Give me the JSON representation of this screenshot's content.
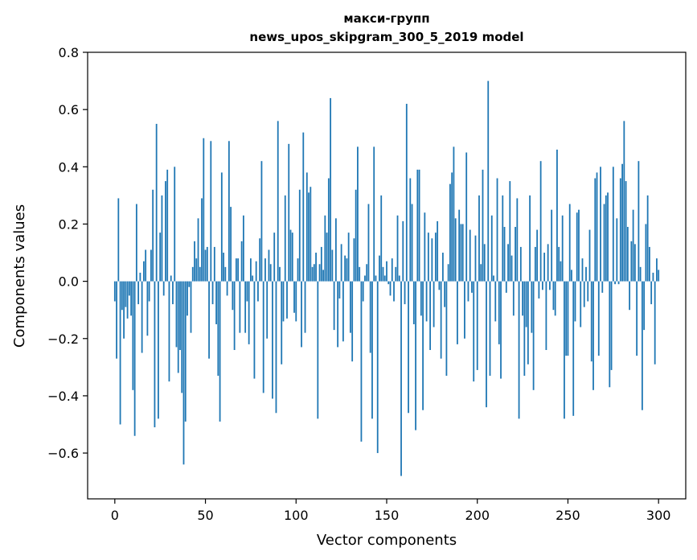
{
  "chart_data": {
    "type": "bar",
    "title": [
      "макси-групп",
      "news_upos_skipgram_300_5_2019 model"
    ],
    "xlabel": "Vector components",
    "ylabel": "Components values",
    "xlim": [
      -15,
      315
    ],
    "ylim": [
      -0.76,
      0.8
    ],
    "xticks": [
      0,
      50,
      100,
      150,
      200,
      250,
      300
    ],
    "xtick_labels": [
      "0",
      "50",
      "100",
      "150",
      "200",
      "250",
      "300"
    ],
    "yticks": [
      -0.6,
      -0.4,
      -0.2,
      0.0,
      0.2,
      0.4,
      0.6,
      0.8
    ],
    "ytick_labels": [
      "−0.6",
      "−0.4",
      "−0.2",
      "0.0",
      "0.2",
      "0.4",
      "0.6",
      "0.8"
    ],
    "bar_color": "#1f77b4",
    "grid": false,
    "x": "integers 0..299 (one bar per vector component)",
    "values": [
      -0.07,
      -0.27,
      0.29,
      -0.5,
      -0.1,
      -0.2,
      -0.09,
      -0.13,
      -0.05,
      -0.12,
      -0.38,
      -0.54,
      0.27,
      -0.08,
      0.03,
      -0.25,
      0.07,
      0.11,
      -0.19,
      -0.07,
      0.11,
      0.32,
      -0.51,
      0.55,
      -0.48,
      0.17,
      0.3,
      -0.05,
      0.35,
      0.39,
      -0.35,
      0.02,
      -0.08,
      0.4,
      -0.23,
      -0.32,
      -0.24,
      -0.39,
      -0.64,
      -0.49,
      -0.12,
      -0.02,
      -0.18,
      0.05,
      0.14,
      0.08,
      0.22,
      0.05,
      0.29,
      0.5,
      0.11,
      0.12,
      -0.27,
      0.49,
      -0.08,
      0.12,
      -0.15,
      -0.33,
      -0.49,
      0.38,
      0.1,
      0.05,
      -0.05,
      0.49,
      0.26,
      -0.1,
      -0.24,
      0.08,
      0.08,
      -0.18,
      0.14,
      0.23,
      -0.18,
      -0.07,
      -0.22,
      0.08,
      0.02,
      -0.34,
      0.07,
      -0.07,
      0.15,
      0.42,
      -0.39,
      0.08,
      -0.2,
      0.11,
      0.06,
      -0.41,
      0.17,
      -0.46,
      0.56,
      0.05,
      -0.29,
      -0.14,
      0.3,
      -0.13,
      0.48,
      0.18,
      0.17,
      -0.11,
      -0.14,
      0.08,
      0.32,
      -0.23,
      0.52,
      -0.18,
      0.38,
      0.31,
      0.33,
      0.05,
      0.06,
      0.1,
      -0.48,
      0.06,
      0.12,
      0.04,
      0.23,
      0.17,
      0.36,
      0.64,
      0.11,
      -0.17,
      0.22,
      -0.23,
      -0.06,
      0.13,
      -0.21,
      0.09,
      0.08,
      0.17,
      -0.18,
      -0.28,
      0.15,
      0.32,
      0.47,
      0.05,
      -0.56,
      -0.07,
      0.02,
      0.06,
      0.27,
      -0.25,
      -0.48,
      0.47,
      0.02,
      -0.6,
      0.09,
      0.3,
      0.05,
      0.02,
      0.07,
      -0.01,
      -0.05,
      0.08,
      -0.07,
      0.05,
      0.23,
      0.02,
      -0.68,
      0.21,
      -0.08,
      0.62,
      -0.46,
      0.36,
      0.27,
      -0.15,
      -0.52,
      0.39,
      0.39,
      -0.12,
      -0.45,
      0.24,
      -0.14,
      0.17,
      -0.24,
      0.15,
      -0.16,
      0.17,
      0.21,
      -0.03,
      -0.27,
      0.1,
      -0.09,
      -0.33,
      0.06,
      0.34,
      0.38,
      0.47,
      0.22,
      -0.22,
      0.25,
      0.2,
      0.2,
      -0.2,
      0.45,
      -0.07,
      0.18,
      -0.04,
      -0.35,
      0.16,
      -0.31,
      0.3,
      0.06,
      0.39,
      0.13,
      -0.44,
      0.7,
      -0.33,
      0.23,
      0.02,
      -0.14,
      0.36,
      -0.22,
      -0.34,
      0.3,
      0.19,
      -0.04,
      0.13,
      0.35,
      0.09,
      -0.12,
      0.19,
      0.29,
      -0.48,
      0.12,
      -0.12,
      -0.33,
      -0.16,
      -0.29,
      0.3,
      -0.18,
      -0.38,
      0.12,
      0.18,
      -0.06,
      0.42,
      -0.03,
      0.1,
      -0.24,
      0.13,
      -0.03,
      0.25,
      -0.1,
      -0.12,
      0.46,
      0.12,
      0.07,
      0.23,
      -0.48,
      -0.26,
      -0.26,
      0.27,
      0.04,
      -0.47,
      -0.14,
      0.24,
      0.25,
      -0.16,
      0.08,
      -0.09,
      0.05,
      -0.07,
      0.18,
      -0.28,
      -0.38,
      0.36,
      0.38,
      -0.26,
      0.4,
      -0.04,
      0.27,
      0.3,
      0.31,
      -0.37,
      -0.31,
      0.4,
      -0.01,
      0.22,
      -0.01,
      0.36,
      0.41,
      0.56,
      0.35,
      0.19,
      -0.1,
      0.14,
      0.25,
      0.13,
      -0.26,
      0.42,
      0.05,
      -0.45,
      -0.17,
      0.2,
      0.3,
      0.12,
      -0.08,
      0.03,
      -0.29,
      0.08,
      0.04
    ]
  }
}
